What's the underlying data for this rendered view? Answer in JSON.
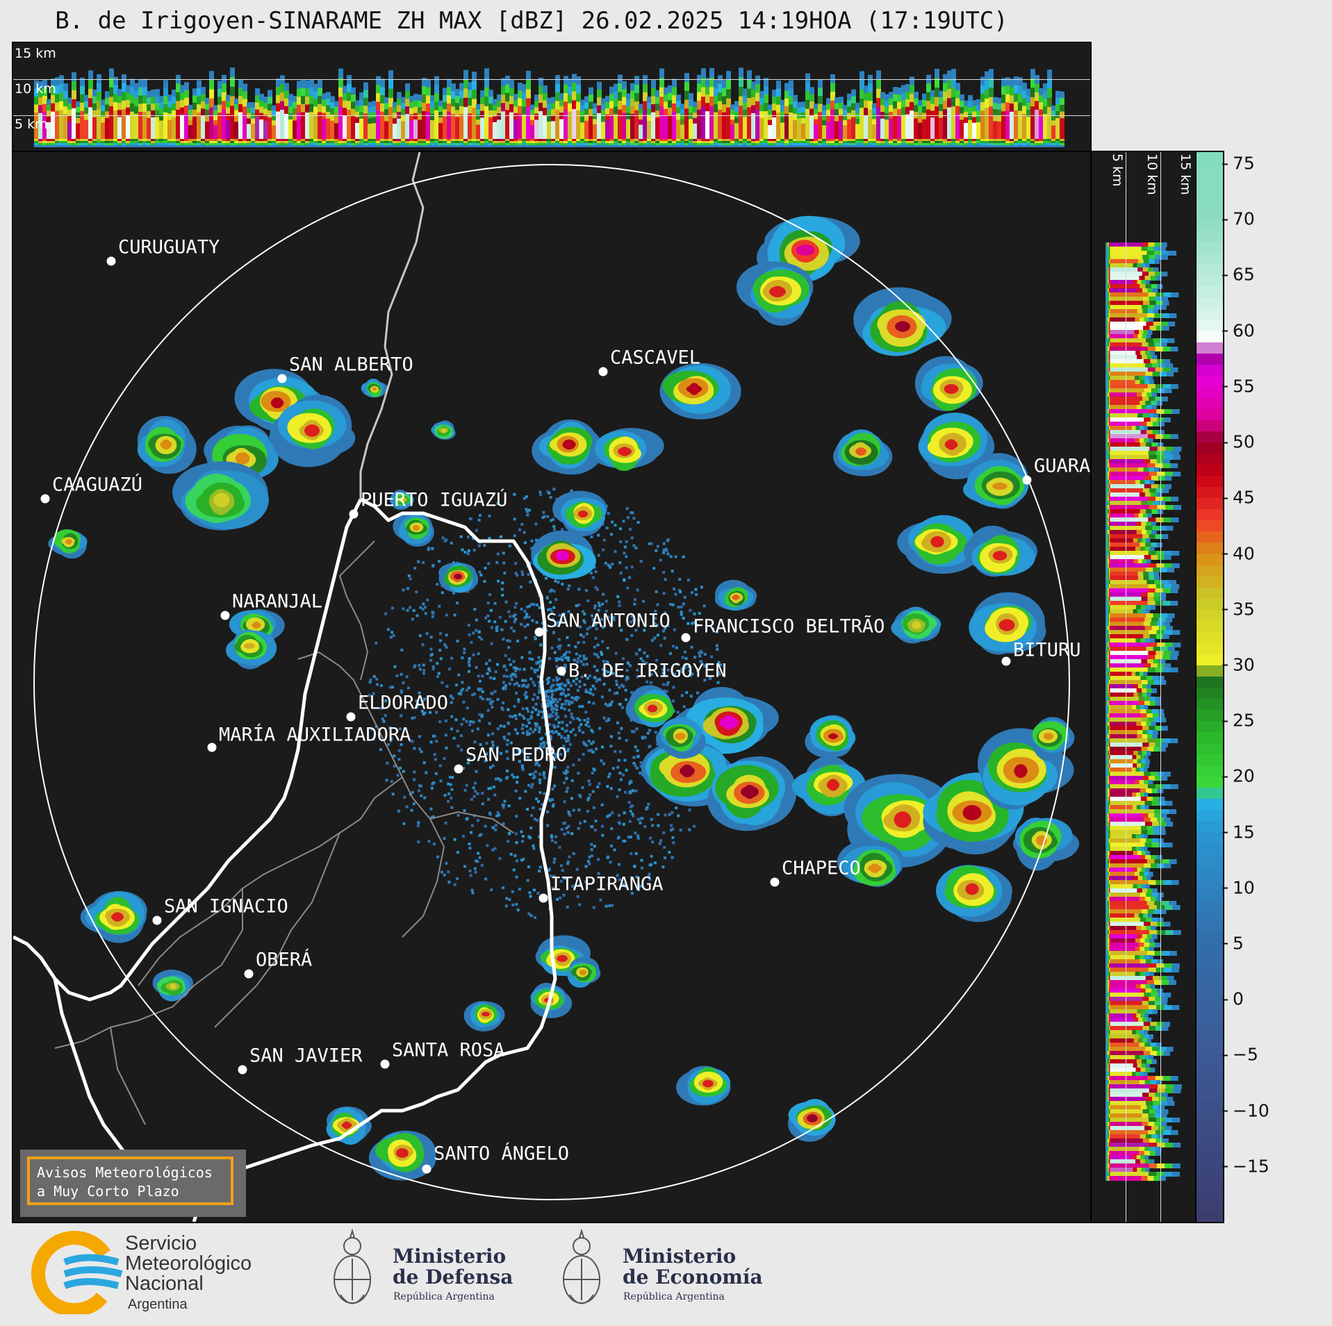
{
  "title": "B. de Irigoyen-SINARAME ZH MAX [dBZ] 26.02.2025 14:19HOA (17:19UTC)",
  "top_panel": {
    "altitude_labels": [
      "15 km",
      "10 km",
      "5 km"
    ]
  },
  "side_panel": {
    "altitude_labels": [
      "5 km",
      "10 km",
      "15 km"
    ]
  },
  "colorbar": {
    "unit": "dBZ",
    "min": -20,
    "max": 76,
    "tick_labels": [
      "75",
      "70",
      "65",
      "60",
      "55",
      "50",
      "45",
      "40",
      "35",
      "30",
      "25",
      "20",
      "15",
      "10",
      "5",
      "0",
      "−5",
      "−10",
      "−15"
    ],
    "tick_values": [
      75,
      70,
      65,
      60,
      55,
      50,
      45,
      40,
      35,
      30,
      25,
      20,
      15,
      10,
      5,
      0,
      -5,
      -10,
      -15
    ],
    "segments": [
      {
        "from": -20,
        "to": 18,
        "color": "gradient-blue"
      },
      {
        "from": 18,
        "to": 30,
        "color": "gradient-green"
      },
      {
        "from": 30,
        "to": 43,
        "color": "gradient-yellow-orange"
      },
      {
        "from": 43,
        "to": 50,
        "color": "gradient-red"
      },
      {
        "from": 50,
        "to": 59,
        "color": "gradient-magenta"
      },
      {
        "from": 59,
        "to": 61,
        "color": "#ffffff"
      },
      {
        "from": 61,
        "to": 76,
        "color": "gradient-teal"
      }
    ]
  },
  "cities": [
    {
      "name": "CURUGUATY"
    },
    {
      "name": "SAN ALBERTO"
    },
    {
      "name": "CASCAVEL"
    },
    {
      "name": "CAAGUAZÚ"
    },
    {
      "name": "GUARA"
    },
    {
      "name": "PUERTO IGUAZÚ"
    },
    {
      "name": "NARANJAL"
    },
    {
      "name": "SAN ANTONIO"
    },
    {
      "name": "FRANCISCO BELTRÃO"
    },
    {
      "name": "BITURU"
    },
    {
      "name": "B. DE IRIGOYEN"
    },
    {
      "name": "ELDORADO"
    },
    {
      "name": "MARÍA AUXILIADORA"
    },
    {
      "name": "SAN PEDRO"
    },
    {
      "name": "CHAPECO"
    },
    {
      "name": "ITAPIRANGA"
    },
    {
      "name": "SAN IGNACIO"
    },
    {
      "name": "OBERÁ"
    },
    {
      "name": "SAN JAVIER"
    },
    {
      "name": "SANTA ROSA"
    },
    {
      "name": "SANTO ÁNGELO"
    }
  ],
  "warning": {
    "line1": "Avisos Meteorológicos",
    "line2": "a Muy Corto Plazo"
  },
  "logos": {
    "smn": {
      "line1": "Servicio",
      "line2": "Meteorológico",
      "line3": "Nacional",
      "line4": "Argentina"
    },
    "defensa": {
      "line1": "Ministerio",
      "line2": "de Defensa",
      "line3": "República Argentina"
    },
    "economia": {
      "line1": "Ministerio",
      "line2": "de Economía",
      "line3": "República Argentina"
    }
  },
  "colors": {
    "background": "#e9e9e9",
    "panel": "#1b1b1b",
    "warning_border": "#f0a019",
    "smn_orange": "#f5a800",
    "smn_blue": "#2aa7df"
  }
}
